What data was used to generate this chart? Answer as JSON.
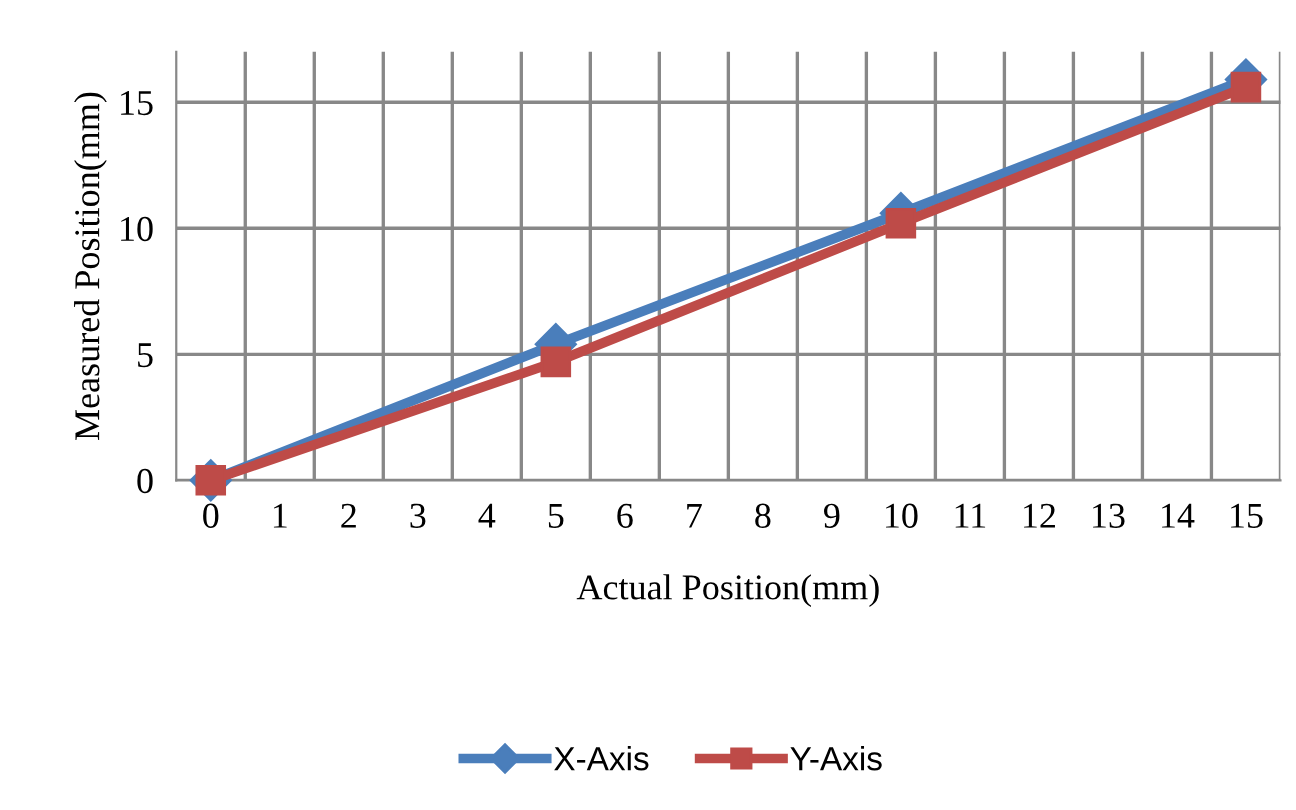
{
  "chart_data": {
    "type": "line",
    "xlabel": "Actual Position(mm)",
    "ylabel": "Measured Position(mm)",
    "xlim": [
      -0.5,
      15.5
    ],
    "xticks": [
      0,
      1,
      2,
      3,
      4,
      5,
      6,
      7,
      8,
      9,
      10,
      11,
      12,
      13,
      14,
      15
    ],
    "ylim": [
      0,
      17
    ],
    "yticks": [
      0,
      5,
      10,
      15
    ],
    "grid": true,
    "legend": "bottom",
    "series": [
      {
        "name": "X-Axis",
        "color": "#4a7ebb",
        "marker": "diamond",
        "x": [
          0,
          5,
          10,
          15
        ],
        "values": [
          0,
          5.4,
          10.6,
          15.9
        ]
      },
      {
        "name": "Y-Axis",
        "color": "#be4b48",
        "marker": "square",
        "x": [
          0,
          5,
          10,
          15
        ],
        "values": [
          0,
          4.7,
          10.2,
          15.6
        ]
      }
    ]
  }
}
